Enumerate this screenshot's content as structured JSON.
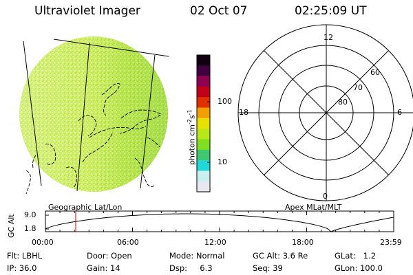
{
  "header": {
    "instrument": "Ultraviolet Imager",
    "date": "02 Oct 07",
    "time": "02:25:09 UT"
  },
  "left_panel": {
    "caption": "Geographic Lat/Lon"
  },
  "right_panel": {
    "caption": "Apex MLat/MLT",
    "mlt_labels": {
      "top": "12",
      "left": "18",
      "right": "6",
      "bottom": "0"
    },
    "lat_labels": [
      "60",
      "70",
      "80"
    ]
  },
  "colorbar": {
    "unit_label": "photon cm^-2 s^-1",
    "unit_main": "photon cm",
    "unit_exp1": "-2",
    "unit_s": "s",
    "unit_exp2": "-1",
    "tick_100": "100",
    "tick_10": "10",
    "colors": [
      "#e8e8ee",
      "#c8f0f0",
      "#20d8d8",
      "#40c870",
      "#80e020",
      "#b8e818",
      "#e8e000",
      "#f0a000",
      "#e03000",
      "#c00018",
      "#900050",
      "#400040",
      "#100010"
    ]
  },
  "timeline": {
    "axis_label": "GC Alt",
    "y_top": "9.0",
    "y_bottom": "1.8",
    "x_ticks": [
      "00:00",
      "06:00",
      "12:00",
      "18:00",
      "23:59"
    ],
    "marker_color": "#cc0000"
  },
  "footer": {
    "flt": "Flt: LBHL",
    "door": "Door: Open",
    "mode": "Mode: Normal",
    "gc_alt": "GC Alt: 3.6 Re",
    "glat": "GLat:   1.2",
    "ip": "IP: 36.0",
    "gain": "Gain: 14",
    "dsp": "Dsp:     6.3",
    "seq": "Seq: 39",
    "glon": "GLon: 100.0"
  },
  "image_colors": {
    "dominant": "#c8ec50",
    "light": "#e8f090",
    "dark": "#58c030"
  }
}
